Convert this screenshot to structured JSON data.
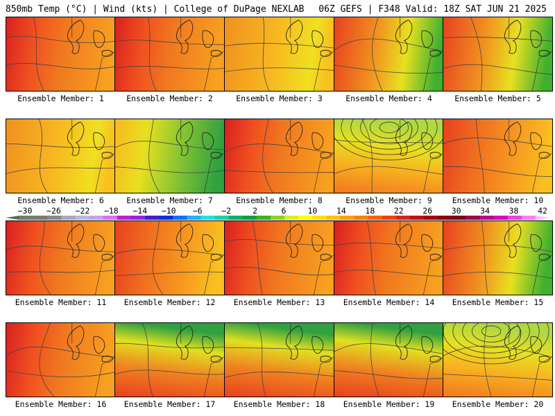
{
  "header": {
    "left": "850mb Temp (°C) | Wind (kts) | College of DuPage NEXLAB",
    "right": "06Z GEFS | F348 Valid: 18Z SAT JUN 21 2025"
  },
  "members": [
    {
      "label": "Ensemble Member: 1",
      "style": "hot-west"
    },
    {
      "label": "Ensemble Member: 2",
      "style": "hot-west"
    },
    {
      "label": "Ensemble Member: 3",
      "style": "warm-yellow"
    },
    {
      "label": "Ensemble Member: 4",
      "style": "cool-northeast"
    },
    {
      "label": "Ensemble Member: 5",
      "style": "cool-northeast"
    },
    {
      "label": "Ensemble Member: 6",
      "style": "warm-yellow"
    },
    {
      "label": "Ensemble Member: 7",
      "style": "cool-east"
    },
    {
      "label": "Ensemble Member: 8",
      "style": "hot-west"
    },
    {
      "label": "Ensemble Member: 9",
      "style": "low-north"
    },
    {
      "label": "Ensemble Member: 10",
      "style": "warm-orange"
    },
    {
      "label": "Ensemble Member: 11",
      "style": "hot-west"
    },
    {
      "label": "Ensemble Member: 12",
      "style": "warm-orange"
    },
    {
      "label": "Ensemble Member: 13",
      "style": "hot-west"
    },
    {
      "label": "Ensemble Member: 14",
      "style": "hot-west"
    },
    {
      "label": "Ensemble Member: 15",
      "style": "cool-northeast"
    },
    {
      "label": "Ensemble Member: 16",
      "style": "hot-west"
    },
    {
      "label": "Ensemble Member: 17",
      "style": "cool-north"
    },
    {
      "label": "Ensemble Member: 18",
      "style": "cool-north"
    },
    {
      "label": "Ensemble Member: 19",
      "style": "cool-north"
    },
    {
      "label": "Ensemble Member: 20",
      "style": "low-north"
    }
  ],
  "colorbar": {
    "labels": [
      "−30",
      "−26",
      "−22",
      "−18",
      "−14",
      "−10",
      "−6",
      "−2",
      "2",
      "6",
      "10",
      "14",
      "18",
      "22",
      "26",
      "30",
      "34",
      "38",
      "42"
    ],
    "colors": [
      "#5a6a5a",
      "#6f7f6f",
      "#7a7a7a",
      "#8a8a8a",
      "#a8a8b8",
      "#b8b8e0",
      "#c8a0e8",
      "#d870f0",
      "#c020d0",
      "#9a20e0",
      "#4020d0",
      "#1030e0",
      "#1070ff",
      "#20b0ff",
      "#20e0e0",
      "#20d0a0",
      "#10b060",
      "#10a040",
      "#40b020",
      "#90d020",
      "#d8f020",
      "#ffff00",
      "#ffe000",
      "#ffc000",
      "#ffa000",
      "#ff8000",
      "#ff6000",
      "#f04000",
      "#e02020",
      "#c81010",
      "#b00000",
      "#900000",
      "#800010",
      "#a00050",
      "#c00090",
      "#e000c0",
      "#f040e0",
      "#ff80f0",
      "#ffc0ff"
    ]
  }
}
